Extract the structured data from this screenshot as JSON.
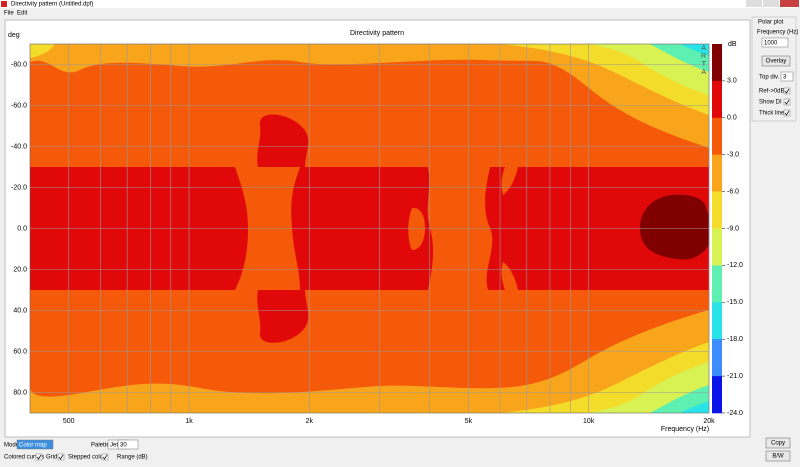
{
  "window": {
    "title": "Directivity pattern (Untitled.dpf)",
    "menu": [
      "File",
      "Edit"
    ]
  },
  "plot": {
    "title": "Directivity pattern",
    "y_unit": "deg",
    "x_label": "Frequency (Hz)",
    "xscale": "log",
    "xlim": [
      400,
      20000
    ],
    "ylim": [
      -90,
      90
    ],
    "xticks": [
      {
        "value": 500,
        "label": "500"
      },
      {
        "value": 1000,
        "label": "1k"
      },
      {
        "value": 2000,
        "label": "2k"
      },
      {
        "value": 5000,
        "label": "5k"
      },
      {
        "value": 10000,
        "label": "10k"
      },
      {
        "value": 20000,
        "label": "20k"
      }
    ],
    "x_minor": [
      600,
      700,
      800,
      900,
      3000,
      4000,
      6000,
      7000,
      8000,
      9000
    ],
    "yticks": [
      {
        "value": -80,
        "label": "-80.0"
      },
      {
        "value": -60,
        "label": "-60.0"
      },
      {
        "value": -40,
        "label": "-40.0"
      },
      {
        "value": -20,
        "label": "-20.0"
      },
      {
        "value": 0,
        "label": "0.0"
      },
      {
        "value": 20,
        "label": "20.0"
      },
      {
        "value": 40,
        "label": "40.0"
      },
      {
        "value": 60,
        "label": "60.0"
      },
      {
        "value": 80,
        "label": "80.0"
      }
    ],
    "grid": true
  },
  "colorbar": {
    "label": "dB",
    "brand": "ARTA",
    "lim": [
      -24,
      6
    ],
    "ticks": [
      {
        "value": 3,
        "label": "3.0"
      },
      {
        "value": 0,
        "label": "0.0"
      },
      {
        "value": -3,
        "label": "-3.0"
      },
      {
        "value": -6,
        "label": "-6.0"
      },
      {
        "value": -9,
        "label": "-9.0"
      },
      {
        "value": -12,
        "label": "-12.0"
      },
      {
        "value": -15,
        "label": "-15.0"
      },
      {
        "value": -18,
        "label": "-18.0"
      },
      {
        "value": -21,
        "label": "-21.0"
      },
      {
        "value": -24,
        "label": "-24.0"
      }
    ],
    "colors": [
      "#800000",
      "#e00808",
      "#f55a0a",
      "#f9a51c",
      "#f4dc2a",
      "#d8f254",
      "#5ef0b0",
      "#28e4e8",
      "#3c8cff",
      "#0a14e8"
    ]
  },
  "polar_panel": {
    "title": "Polar plot",
    "frequency_label": "Frequency (Hz)",
    "frequency": "1000",
    "overlay_button": "Overlay",
    "top_div_label": "Top div.",
    "top_div": "3",
    "checkboxes": [
      "Ref->0dB",
      "Show DI",
      "Thick line"
    ]
  },
  "buttons": [
    "Copy",
    "B/W"
  ],
  "bottom": {
    "mode_label": "Mode",
    "mode": "Color map",
    "palette_label": "Palette",
    "palette": "Jet",
    "range": "30",
    "range_label": "Range (dB)",
    "checkboxes": [
      "Colored curves",
      "Grid",
      "Stepped colors"
    ]
  }
}
